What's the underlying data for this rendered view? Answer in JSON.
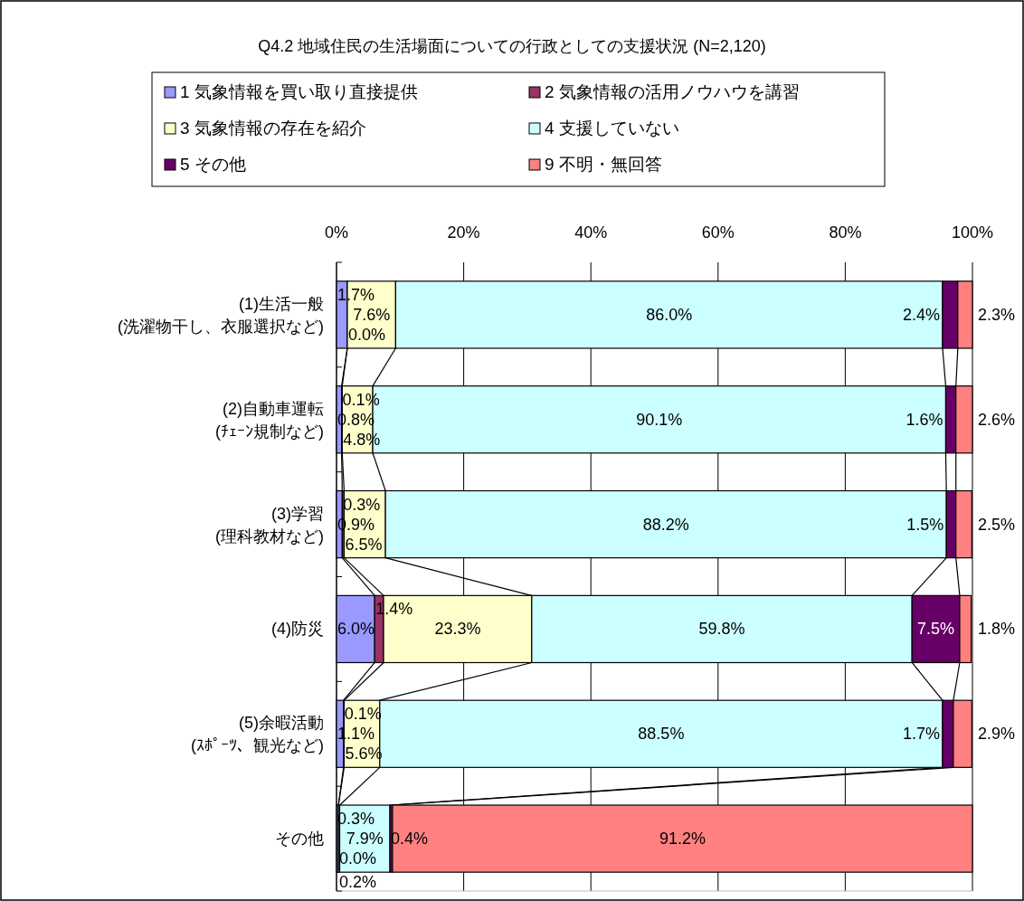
{
  "chart_data": {
    "type": "bar",
    "orientation": "horizontal",
    "stacked": true,
    "title": "Q4.2 地域住民の生活場面についての行政としての支援状況 (N=2,120)",
    "categories": [
      "(1)生活一般\n(洗濯物干し、衣服選択など)",
      "(2)自動車運転\n(ﾁｪｰﾝ規制など)",
      "(3)学習\n(理科教材など)",
      "(4)防災",
      "(5)余暇活動\n(ｽﾎﾟｰﾂ、観光など)",
      "その他"
    ],
    "series": [
      {
        "name": "1 気象情報を買い取り直接提供",
        "color": "#9999ff",
        "values": [
          1.7,
          0.8,
          0.9,
          6.0,
          1.1,
          0.3
        ],
        "value_labels": [
          "1.7%",
          "0.8%",
          "0.9%",
          "6.0%",
          "1.1%",
          "0.3%"
        ]
      },
      {
        "name": "2 気象情報の活用ノウハウを講習",
        "color": "#993366",
        "values": [
          0.0,
          0.1,
          0.3,
          1.4,
          0.1,
          0.0
        ],
        "value_labels": [
          "0.0%",
          "0.1%",
          "0.3%",
          "1.4%",
          "0.1%",
          "0.0%"
        ]
      },
      {
        "name": "3 気象情報の存在を紹介",
        "color": "#ffffcc",
        "values": [
          7.6,
          4.8,
          6.5,
          23.3,
          5.6,
          0.2
        ],
        "value_labels": [
          "7.6%",
          "4.8%",
          "6.5%",
          "23.3%",
          "5.6%",
          "0.2%"
        ]
      },
      {
        "name": "4 支援していない",
        "color": "#ccffff",
        "values": [
          86.0,
          90.1,
          88.2,
          59.8,
          88.5,
          7.9
        ],
        "value_labels": [
          "86.0%",
          "90.1%",
          "88.2%",
          "59.8%",
          "88.5%",
          "7.9%"
        ]
      },
      {
        "name": "5 その他",
        "color": "#660066",
        "values": [
          2.4,
          1.6,
          1.5,
          7.5,
          1.7,
          0.4
        ],
        "value_labels": [
          "2.4%",
          "1.6%",
          "1.5%",
          "7.5%",
          "1.7%",
          "0.4%"
        ]
      },
      {
        "name": "9 不明・無回答",
        "color": "#ff8080",
        "values": [
          2.3,
          2.6,
          2.5,
          1.8,
          2.9,
          91.2
        ],
        "value_labels": [
          "2.3%",
          "2.6%",
          "2.5%",
          "1.8%",
          "2.9%",
          "91.2%"
        ]
      }
    ],
    "xlim": [
      0,
      100
    ],
    "xticks": [
      {
        "value": 0,
        "label": "0%"
      },
      {
        "value": 20,
        "label": "20%"
      },
      {
        "value": 40,
        "label": "40%"
      },
      {
        "value": 60,
        "label": "60%"
      },
      {
        "value": 80,
        "label": "80%"
      },
      {
        "value": 100,
        "label": "100%"
      }
    ],
    "grid": "x",
    "legend": "top"
  }
}
